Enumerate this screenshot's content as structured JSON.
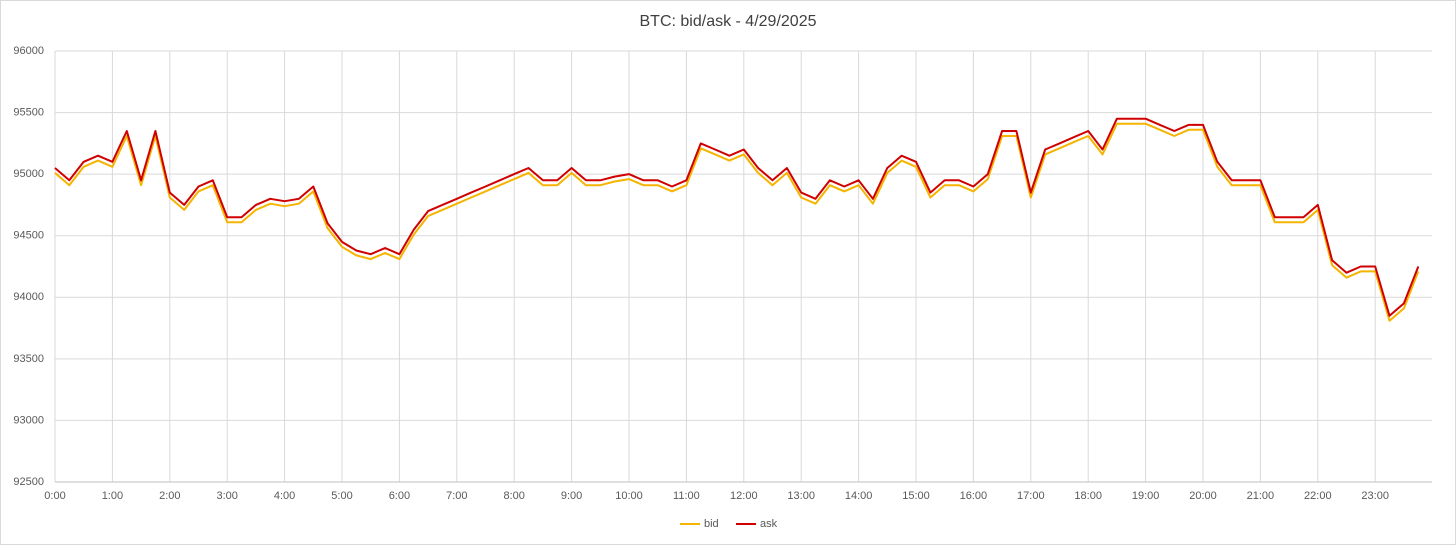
{
  "chart_data": {
    "type": "line",
    "title": "BTC: bid/ask - 4/29/2025",
    "categories": [
      "0:00",
      null,
      null,
      null,
      "1:00",
      null,
      null,
      null,
      "2:00",
      null,
      null,
      null,
      "3:00",
      null,
      null,
      null,
      "4:00",
      null,
      null,
      null,
      "5:00",
      null,
      null,
      null,
      "6:00",
      null,
      null,
      null,
      "7:00",
      null,
      null,
      null,
      "8:00",
      null,
      null,
      null,
      "9:00",
      null,
      null,
      null,
      "10:00",
      null,
      null,
      null,
      "11:00",
      null,
      null,
      null,
      "12:00",
      null,
      null,
      null,
      "13:00",
      null,
      null,
      null,
      "14:00",
      null,
      null,
      null,
      "15:00",
      null,
      null,
      null,
      "16:00",
      null,
      null,
      null,
      "17:00",
      null,
      null,
      null,
      "18:00",
      null,
      null,
      null,
      "19:00",
      null,
      null,
      null,
      "20:00",
      null,
      null,
      null,
      "21:00",
      null,
      null,
      null,
      "22:00",
      null,
      null,
      null,
      "23:00",
      null,
      null,
      null
    ],
    "series": [
      {
        "name": "bid",
        "color": "#f5b400",
        "values": [
          95010,
          94910,
          95060,
          95110,
          95060,
          95310,
          94910,
          95310,
          94810,
          94710,
          94860,
          94910,
          94610,
          94610,
          94710,
          94760,
          94740,
          94760,
          94860,
          94560,
          94410,
          94340,
          94310,
          94360,
          94310,
          94510,
          94660,
          94710,
          94760,
          94810,
          94860,
          94910,
          94960,
          95010,
          94910,
          94910,
          95010,
          94910,
          94910,
          94940,
          94960,
          94910,
          94910,
          94860,
          94910,
          95210,
          95160,
          95110,
          95160,
          95010,
          94910,
          95010,
          94810,
          94760,
          94910,
          94860,
          94910,
          94760,
          95010,
          95110,
          95060,
          94810,
          94910,
          94910,
          94860,
          94960,
          95310,
          95310,
          94810,
          95160,
          95210,
          95260,
          95310,
          95160,
          95410,
          95410,
          95410,
          95360,
          95310,
          95360,
          95360,
          95060,
          94910,
          94910,
          94910,
          94610,
          94610,
          94610,
          94710,
          94260,
          94160,
          94210,
          94210,
          93810,
          93910,
          94210
        ]
      },
      {
        "name": "ask",
        "color": "#d00000",
        "values": [
          95050,
          94950,
          95100,
          95150,
          95100,
          95350,
          94950,
          95350,
          94850,
          94750,
          94900,
          94950,
          94650,
          94650,
          94750,
          94800,
          94780,
          94800,
          94900,
          94600,
          94450,
          94380,
          94350,
          94400,
          94350,
          94550,
          94700,
          94750,
          94800,
          94850,
          94900,
          94950,
          95000,
          95050,
          94950,
          94950,
          95050,
          94950,
          94950,
          94980,
          95000,
          94950,
          94950,
          94900,
          94950,
          95250,
          95200,
          95150,
          95200,
          95050,
          94950,
          95050,
          94850,
          94800,
          94950,
          94900,
          94950,
          94800,
          95050,
          95150,
          95100,
          94850,
          94950,
          94950,
          94900,
          95000,
          95350,
          95350,
          94850,
          95200,
          95250,
          95300,
          95350,
          95200,
          95450,
          95450,
          95450,
          95400,
          95350,
          95400,
          95400,
          95100,
          94950,
          94950,
          94950,
          94650,
          94650,
          94650,
          94750,
          94300,
          94200,
          94250,
          94250,
          93850,
          93950,
          94250
        ]
      }
    ],
    "ylim": [
      92500,
      96000
    ],
    "yticks": [
      92500,
      93000,
      93500,
      94000,
      94500,
      95000,
      95500,
      96000
    ],
    "grid": true,
    "legend": "bottom"
  }
}
